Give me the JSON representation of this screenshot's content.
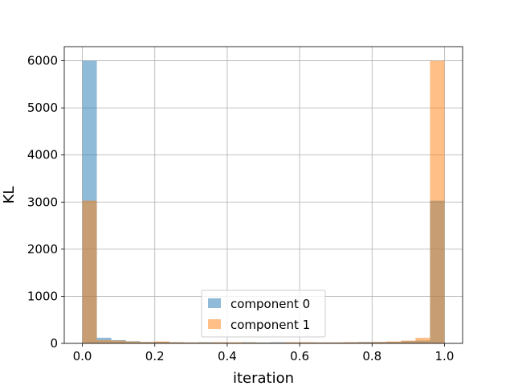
{
  "chart_data": {
    "type": "bar",
    "subtype": "histogram",
    "title": "",
    "xlabel": "iteration",
    "ylabel": "KL",
    "xlim": [
      -0.05,
      1.05
    ],
    "ylim": [
      0,
      6300
    ],
    "xticks": [
      "0.0",
      "0.2",
      "0.4",
      "0.6",
      "0.8",
      "1.0"
    ],
    "yticks": [
      "0",
      "1000",
      "2000",
      "3000",
      "4000",
      "5000",
      "6000"
    ],
    "grid": true,
    "legend_position": "lower center",
    "bin_edges": [
      0.0,
      0.04,
      0.08,
      0.12,
      0.16,
      0.2,
      0.24,
      0.28,
      0.32,
      0.36,
      0.4,
      0.44,
      0.48,
      0.52,
      0.56,
      0.6,
      0.64,
      0.68,
      0.72,
      0.76,
      0.8,
      0.84,
      0.88,
      0.92,
      0.96,
      1.0
    ],
    "series": [
      {
        "name": "component 0",
        "color": "#1f77b4",
        "values": [
          6000,
          120,
          70,
          45,
          30,
          35,
          25,
          20,
          25,
          20,
          15,
          25,
          20,
          25,
          20,
          20,
          20,
          20,
          25,
          30,
          30,
          35,
          50,
          60,
          3030
        ]
      },
      {
        "name": "component 1",
        "color": "#ff7f0e",
        "values": [
          3030,
          70,
          60,
          40,
          30,
          40,
          25,
          20,
          20,
          25,
          25,
          20,
          15,
          15,
          25,
          25,
          20,
          20,
          25,
          25,
          30,
          40,
          60,
          120,
          6000
        ]
      }
    ]
  }
}
